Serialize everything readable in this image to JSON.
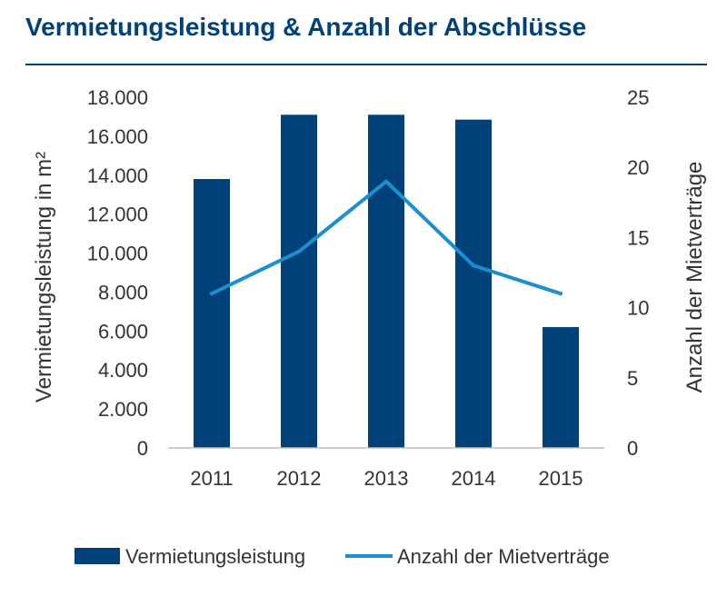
{
  "title": "Vermietungsleistung & Anzahl der Abschlüsse",
  "colors": {
    "title": "#00417A",
    "bars": "#00417A",
    "line": "#1B8FCF",
    "axis": "#BFBFBF"
  },
  "chart_data": {
    "type": "bar+line",
    "categories": [
      "2011",
      "2012",
      "2013",
      "2014",
      "2015"
    ],
    "series": [
      {
        "name": "Vermietungsleistung",
        "type": "bar",
        "axis": "left",
        "values": [
          13800,
          17100,
          17100,
          16850,
          6200
        ]
      },
      {
        "name": "Anzahl der Mietverträge",
        "type": "line",
        "axis": "right",
        "values": [
          11,
          14,
          19,
          13,
          11
        ]
      }
    ],
    "ylabel": "Vermietungsleistung in m²",
    "ylabel_right": "Anzahl der Mietverträge",
    "ylim": [
      0,
      18000
    ],
    "ylim_right": [
      0,
      25
    ],
    "yticks": [
      0,
      2000,
      4000,
      6000,
      8000,
      10000,
      12000,
      14000,
      16000,
      18000
    ],
    "ytick_labels": [
      "0",
      "2.000",
      "4.000",
      "6.000",
      "8.000",
      "10.000",
      "12.000",
      "14.000",
      "16.000",
      "18.000"
    ],
    "yticks_right": [
      "0",
      "5",
      "10",
      "15",
      "20",
      "25"
    ],
    "grid": false,
    "legend": "bottom"
  }
}
